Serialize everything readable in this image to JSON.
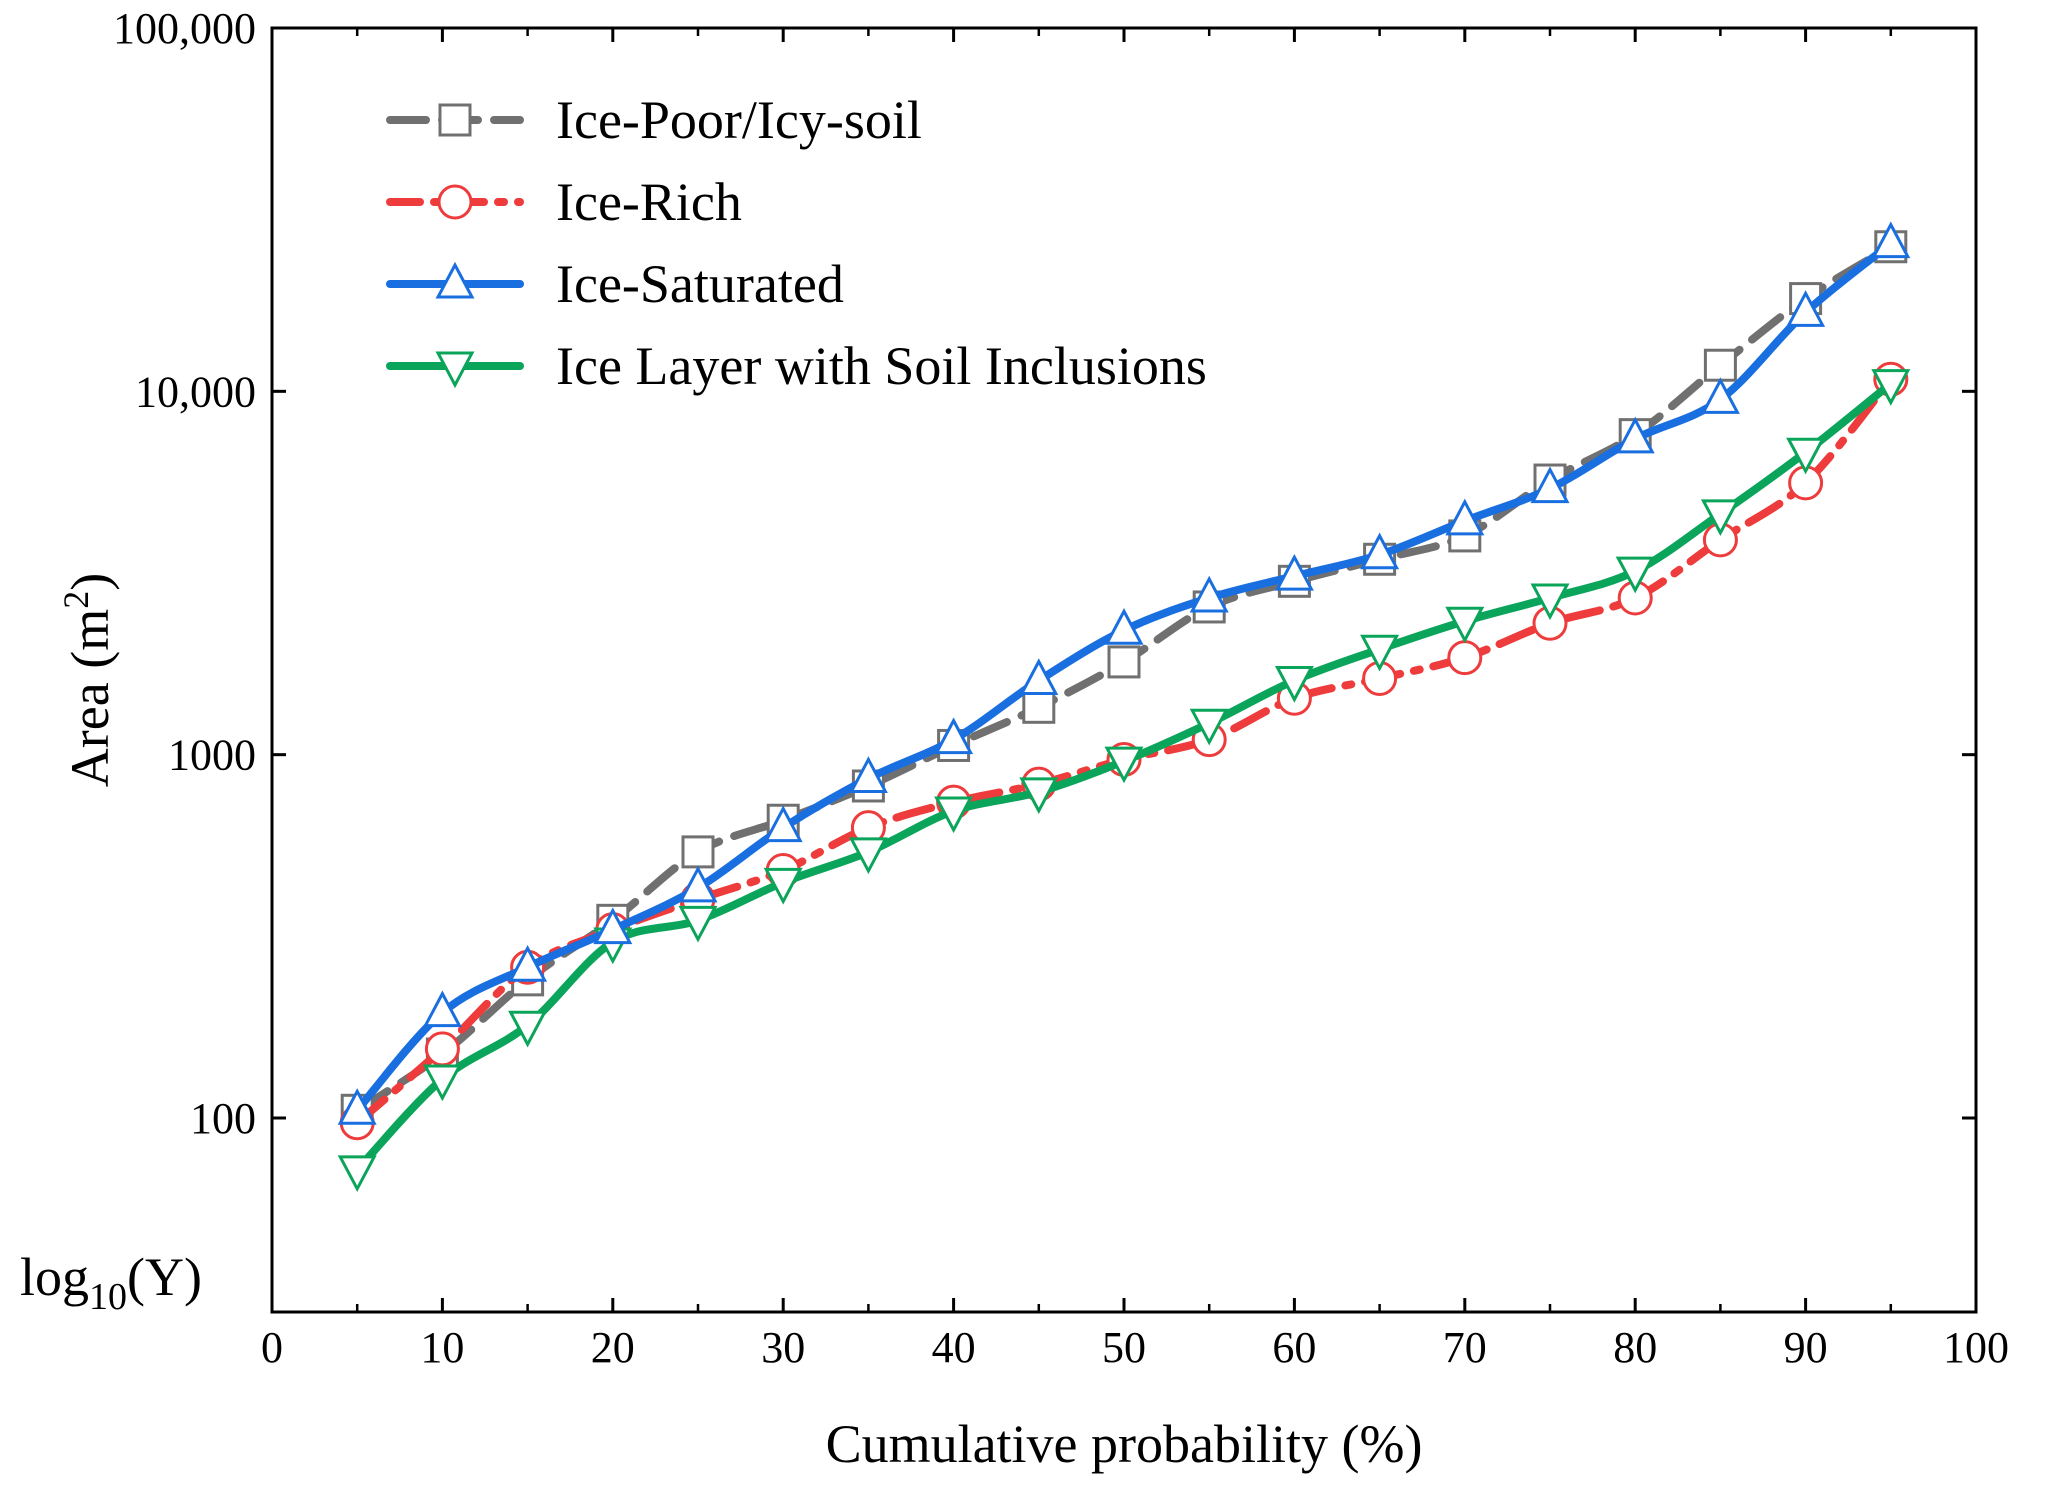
{
  "chart_data": {
    "type": "line",
    "title": "",
    "xlabel": "Cumulative probability (%)",
    "ylabel": "Area (m",
    "ylabel_sup": "2",
    "ylabel_close": ")",
    "yscale_note": {
      "base": "log",
      "sub": "10",
      "rest": "(Y)"
    },
    "xlim": [
      0,
      100
    ],
    "ylim": [
      30,
      100000
    ],
    "yscale": "log",
    "x_ticks": [
      0,
      10,
      20,
      30,
      40,
      50,
      60,
      70,
      80,
      90,
      100
    ],
    "x_tick_labels": [
      "0",
      "10",
      "20",
      "30",
      "40",
      "50",
      "60",
      "70",
      "80",
      "90",
      "100"
    ],
    "y_ticks": [
      100,
      1000,
      10000,
      100000
    ],
    "y_tick_labels": [
      "100",
      "1000",
      "10,000",
      "100,000"
    ],
    "legend_position": "top-left",
    "x": [
      5,
      10,
      15,
      20,
      25,
      30,
      35,
      40,
      45,
      50,
      55,
      60,
      65,
      70,
      75,
      80,
      85,
      90,
      95
    ],
    "series": [
      {
        "name": "Ice-Poor/Icy-soil",
        "color": "#707070",
        "dash": "dashed",
        "marker": "square",
        "values": [
          105,
          150,
          240,
          350,
          540,
          660,
          820,
          1060,
          1350,
          1800,
          2550,
          3000,
          3450,
          4000,
          5700,
          7600,
          11800,
          18000,
          25000
        ]
      },
      {
        "name": "Ice-Rich",
        "color": "#ee3b3b",
        "dash": "dashdot",
        "marker": "circle",
        "values": [
          97,
          155,
          260,
          330,
          400,
          480,
          630,
          740,
          830,
          970,
          1100,
          1430,
          1620,
          1850,
          2300,
          2700,
          3900,
          5600,
          10800
        ]
      },
      {
        "name": "Ice-Saturated",
        "color": "#1a6fe0",
        "dash": "solid",
        "marker": "triangle-up",
        "values": [
          105,
          195,
          260,
          330,
          430,
          630,
          860,
          1100,
          1600,
          2200,
          2700,
          3100,
          3550,
          4400,
          5400,
          7400,
          9500,
          16500,
          25500
        ]
      },
      {
        "name": "Ice Layer with Soil Inclusions",
        "color": "#0aa55a",
        "dash": "solid",
        "marker": "triangle-down",
        "values": [
          72,
          128,
          180,
          305,
          350,
          445,
          540,
          700,
          790,
          960,
          1220,
          1600,
          1950,
          2330,
          2700,
          3200,
          4600,
          6800,
          10500
        ]
      }
    ]
  }
}
